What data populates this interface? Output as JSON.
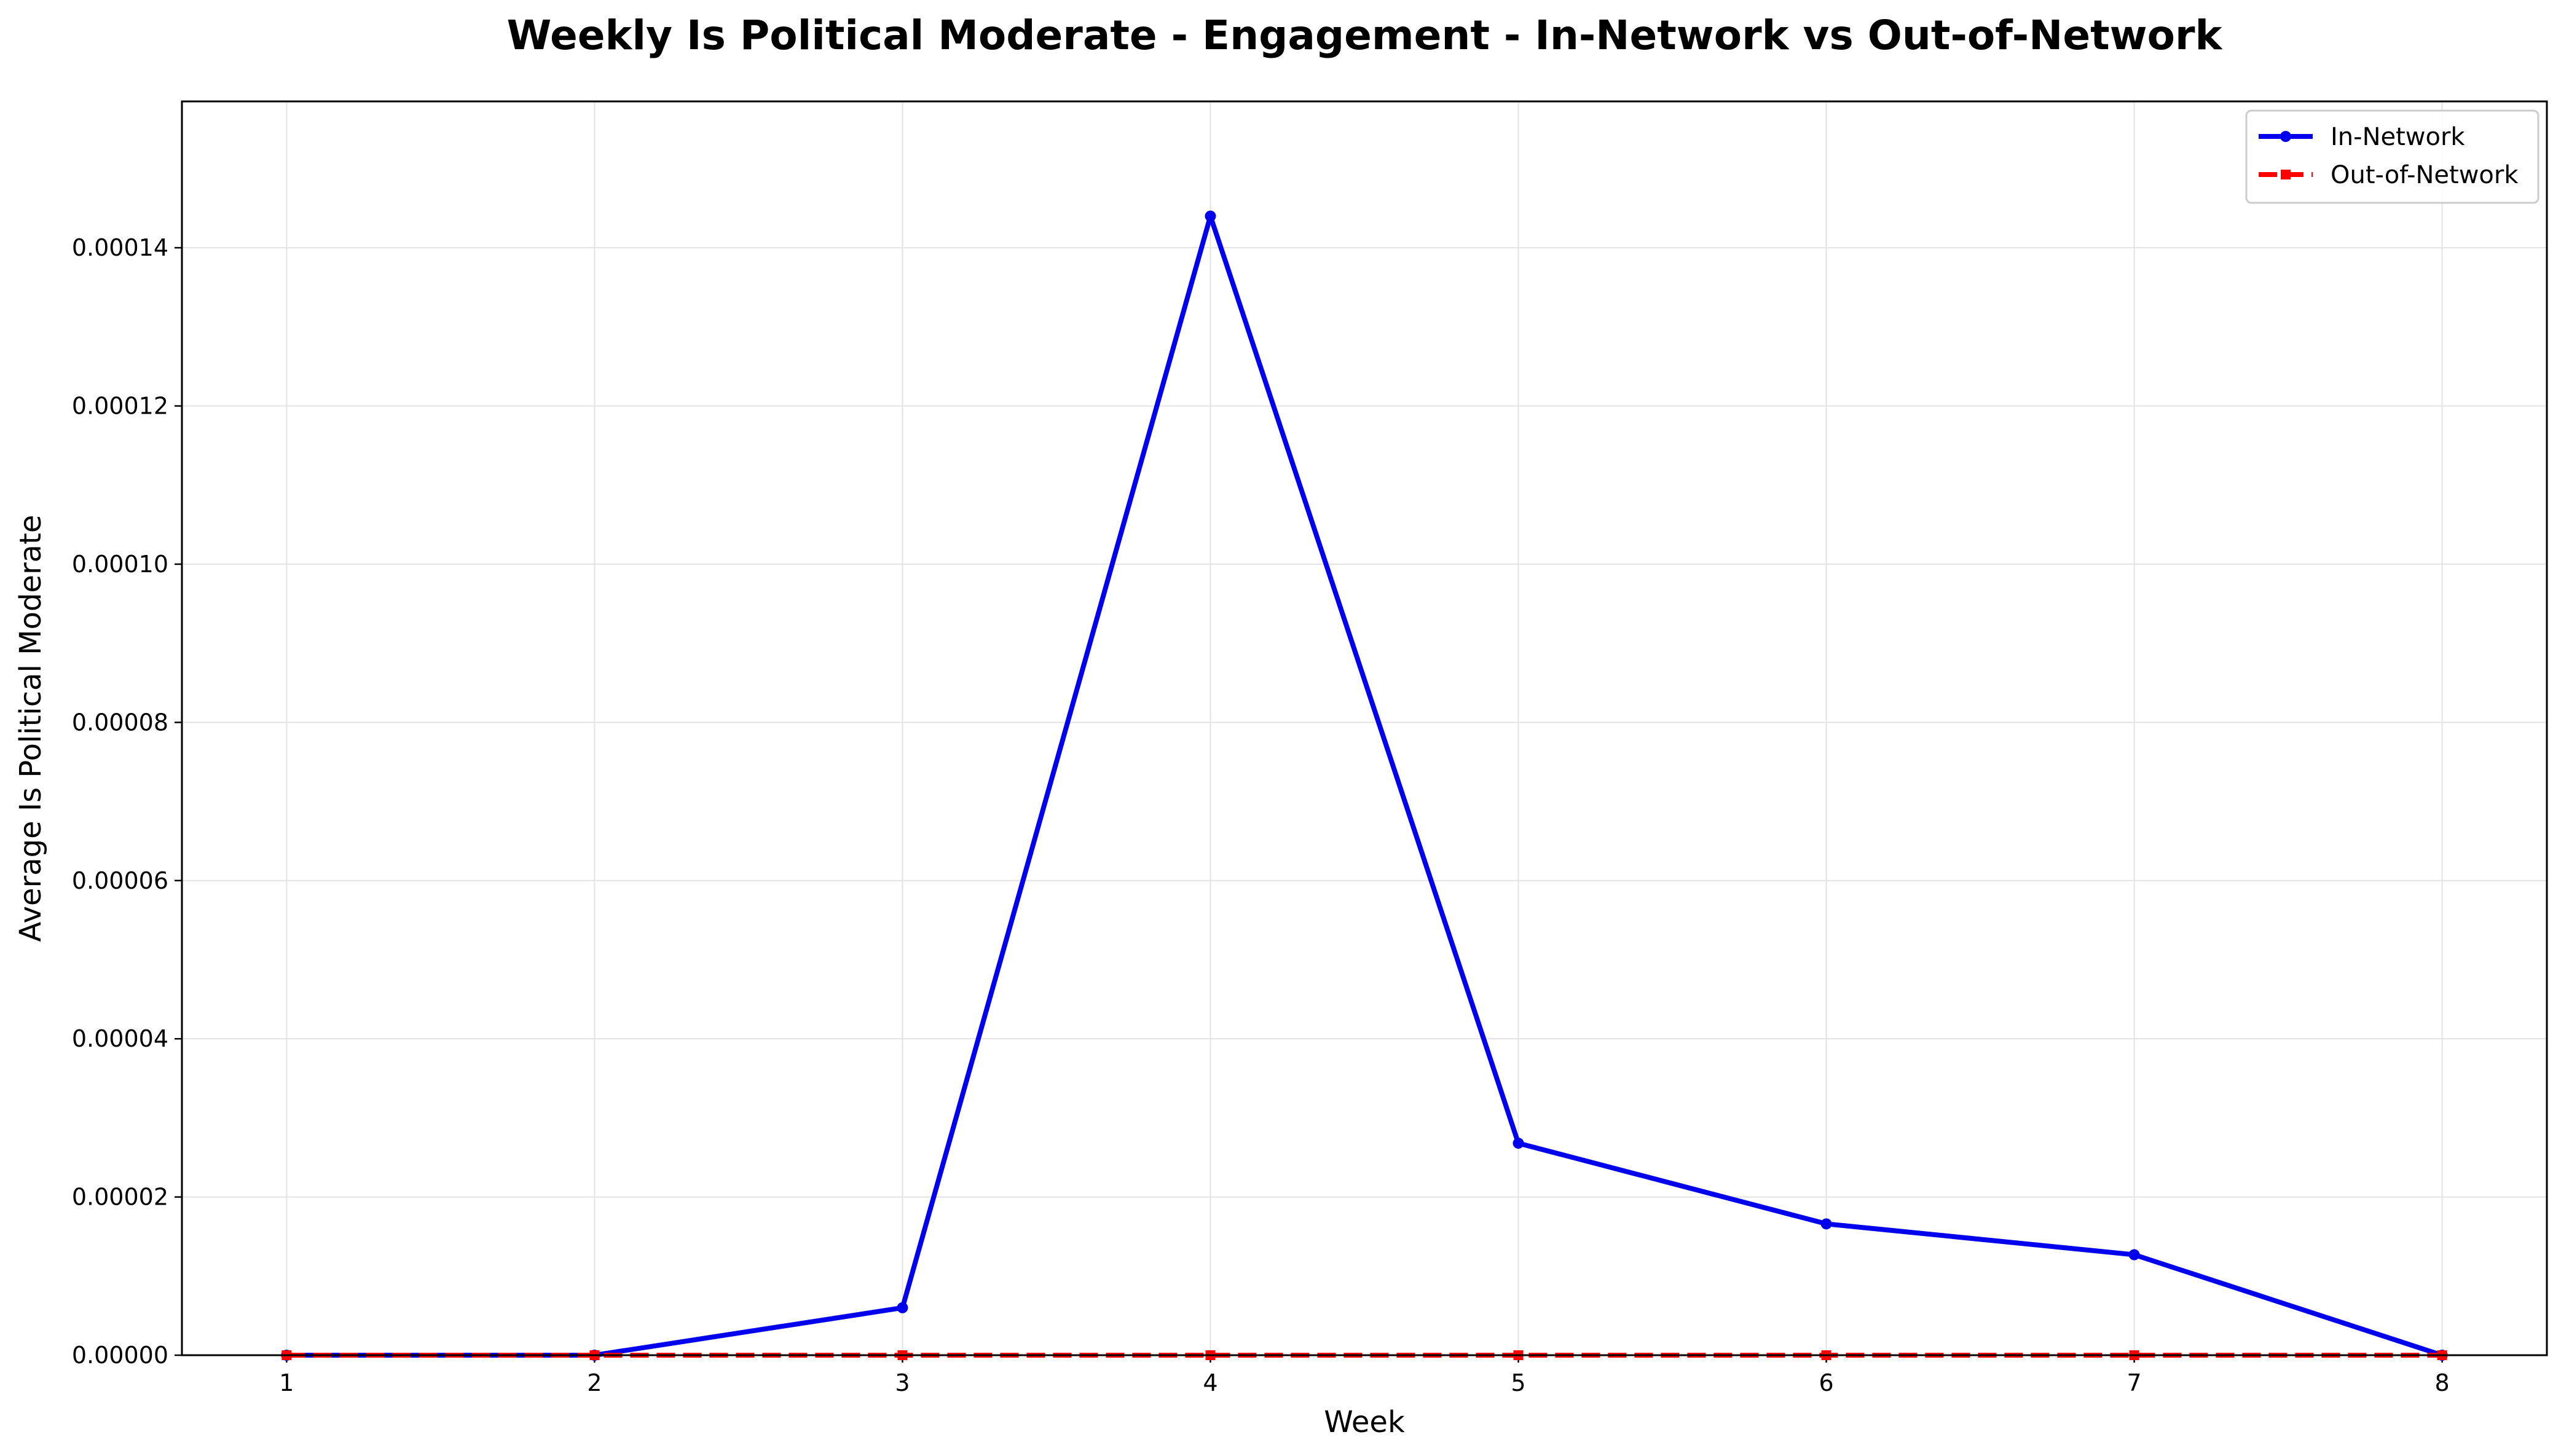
{
  "chart_data": {
    "type": "line",
    "title": "Weekly Is Political Moderate - Engagement - In-Network vs Out-of-Network",
    "xlabel": "Week",
    "ylabel": "Average Is Political Moderate",
    "x": [
      1,
      2,
      3,
      4,
      5,
      6,
      7,
      8
    ],
    "x_tick_labels": [
      "1",
      "2",
      "3",
      "4",
      "5",
      "6",
      "7",
      "8"
    ],
    "y_tick_values": [
      0,
      2e-05,
      4e-05,
      6e-05,
      8e-05,
      0.0001,
      0.00012,
      0.00014
    ],
    "y_tick_labels": [
      "0.00000",
      "0.00002",
      "0.00004",
      "0.00006",
      "0.00008",
      "0.00010",
      "0.00012",
      "0.00014"
    ],
    "xlim": [
      0.66,
      8.34
    ],
    "ylim": [
      0,
      0.0001585
    ],
    "grid": true,
    "legend_position": "top-right",
    "series": [
      {
        "name": "In-Network",
        "color": "#0000ee",
        "marker": "circle",
        "line_style": "solid",
        "values": [
          0,
          0,
          6e-06,
          0.000144,
          2.68e-05,
          1.66e-05,
          1.27e-05,
          0
        ]
      },
      {
        "name": "Out-of-Network",
        "color": "#ff0000",
        "marker": "square",
        "line_style": "dashed",
        "values": [
          0,
          0,
          0,
          0,
          0,
          0,
          0,
          0
        ]
      }
    ]
  }
}
